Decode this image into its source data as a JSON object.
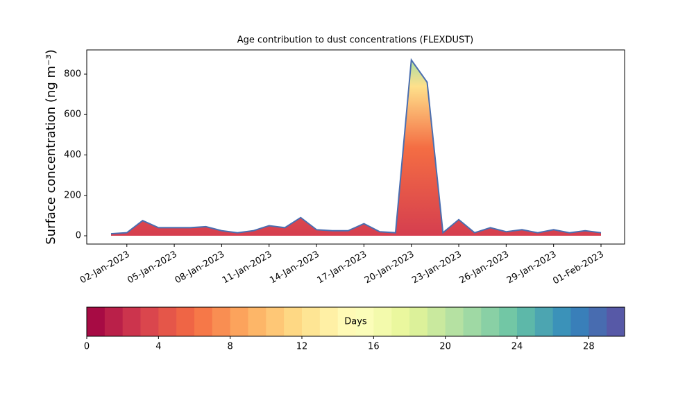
{
  "chart_data": [
    {
      "type": "area",
      "title": "Age contribution to dust concentrations (FLEXDUST)",
      "y_label": "Surface concentration (ng m⁻³)",
      "x": [
        "2023-01-01",
        "2023-01-02",
        "2023-01-03",
        "2023-01-04",
        "2023-01-05",
        "2023-01-06",
        "2023-01-07",
        "2023-01-08",
        "2023-01-09",
        "2023-01-10",
        "2023-01-11",
        "2023-01-12",
        "2023-01-13",
        "2023-01-14",
        "2023-01-15",
        "2023-01-16",
        "2023-01-17",
        "2023-01-18",
        "2023-01-19",
        "2023-01-20",
        "2023-01-21",
        "2023-01-22",
        "2023-01-23",
        "2023-01-24",
        "2023-01-25",
        "2023-01-26",
        "2023-01-27",
        "2023-01-28",
        "2023-01-29",
        "2023-01-30",
        "2023-01-31",
        "2023-02-01"
      ],
      "values": [
        10,
        15,
        75,
        40,
        40,
        40,
        45,
        25,
        15,
        25,
        50,
        40,
        90,
        30,
        25,
        25,
        60,
        20,
        15,
        870,
        760,
        15,
        80,
        15,
        40,
        20,
        30,
        15,
        30,
        15,
        25,
        15
      ],
      "color": "#4a6eb0",
      "ylim": [
        -41,
        920
      ],
      "yticks": [
        0,
        200,
        400,
        600,
        800
      ],
      "xticks": [
        {
          "value": "2023-01-02",
          "label": "02-Jan-2023"
        },
        {
          "value": "2023-01-05",
          "label": "05-Jan-2023"
        },
        {
          "value": "2023-01-08",
          "label": "08-Jan-2023"
        },
        {
          "value": "2023-01-11",
          "label": "11-Jan-2023"
        },
        {
          "value": "2023-01-14",
          "label": "14-Jan-2023"
        },
        {
          "value": "2023-01-17",
          "label": "17-Jan-2023"
        },
        {
          "value": "2023-01-20",
          "label": "20-Jan-2023"
        },
        {
          "value": "2023-01-23",
          "label": "23-Jan-2023"
        },
        {
          "value": "2023-01-26",
          "label": "26-Jan-2023"
        },
        {
          "value": "2023-01-29",
          "label": "29-Jan-2023"
        },
        {
          "value": "2023-02-01",
          "label": "01-Feb-2023"
        }
      ]
    },
    {
      "type": "colorbar",
      "label": "Days",
      "xlim": [
        0,
        30
      ],
      "xticks": [
        0,
        4,
        8,
        12,
        16,
        20,
        24,
        28
      ],
      "colors": [
        "#9e0142",
        "#d53e4f",
        "#f46d43",
        "#fdae61",
        "#fee08b",
        "#ffffbf",
        "#e6f598",
        "#abdda4",
        "#66c2a5",
        "#3288bd",
        "#5e4fa2"
      ]
    }
  ]
}
